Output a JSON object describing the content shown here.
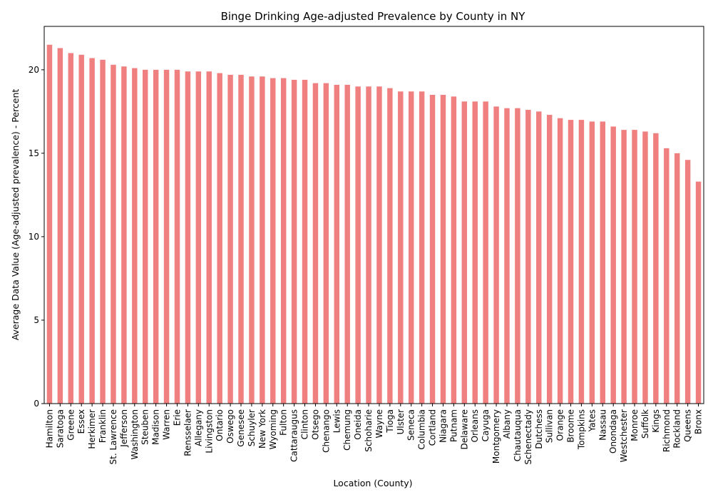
{
  "chart_data": {
    "type": "bar",
    "title": "Binge Drinking Age-adjusted Prevalence by County in NY",
    "xlabel": "Location (County)",
    "ylabel": "Average Data Value (Age-adjusted prevalence) - Percent",
    "ylim": [
      0,
      22.6
    ],
    "yticks": [
      0,
      5,
      10,
      15,
      20
    ],
    "grid": false,
    "legend": "none",
    "bar_color": "#f08080",
    "categories": [
      "Hamilton",
      "Saratoga",
      "Greene",
      "Essex",
      "Herkimer",
      "Franklin",
      "St. Lawrence",
      "Jefferson",
      "Washington",
      "Steuben",
      "Madison",
      "Warren",
      "Erie",
      "Rensselaer",
      "Allegany",
      "Livingston",
      "Ontario",
      "Oswego",
      "Genesee",
      "Schuyler",
      "New York",
      "Wyoming",
      "Fulton",
      "Cattaraugus",
      "Clinton",
      "Otsego",
      "Chenango",
      "Lewis",
      "Chemung",
      "Oneida",
      "Schoharie",
      "Wayne",
      "Tioga",
      "Ulster",
      "Seneca",
      "Columbia",
      "Cortland",
      "Niagara",
      "Putnam",
      "Delaware",
      "Orleans",
      "Cayuga",
      "Montgomery",
      "Albany",
      "Chautauqua",
      "Schenectady",
      "Dutchess",
      "Sullivan",
      "Orange",
      "Broome",
      "Tompkins",
      "Yates",
      "Nassau",
      "Onondaga",
      "Westchester",
      "Monroe",
      "Suffolk",
      "Kings",
      "Richmond",
      "Rockland",
      "Queens",
      "Bronx"
    ],
    "values": [
      21.5,
      21.3,
      21.0,
      20.9,
      20.7,
      20.6,
      20.3,
      20.2,
      20.1,
      20.0,
      20.0,
      20.0,
      20.0,
      19.9,
      19.9,
      19.9,
      19.8,
      19.7,
      19.7,
      19.6,
      19.6,
      19.5,
      19.5,
      19.4,
      19.4,
      19.2,
      19.2,
      19.1,
      19.1,
      19.0,
      19.0,
      19.0,
      18.9,
      18.7,
      18.7,
      18.7,
      18.5,
      18.5,
      18.4,
      18.1,
      18.1,
      18.1,
      17.8,
      17.7,
      17.7,
      17.6,
      17.5,
      17.3,
      17.1,
      17.0,
      17.0,
      16.9,
      16.9,
      16.6,
      16.4,
      16.4,
      16.3,
      16.2,
      15.3,
      15.0,
      14.6,
      13.3
    ]
  }
}
